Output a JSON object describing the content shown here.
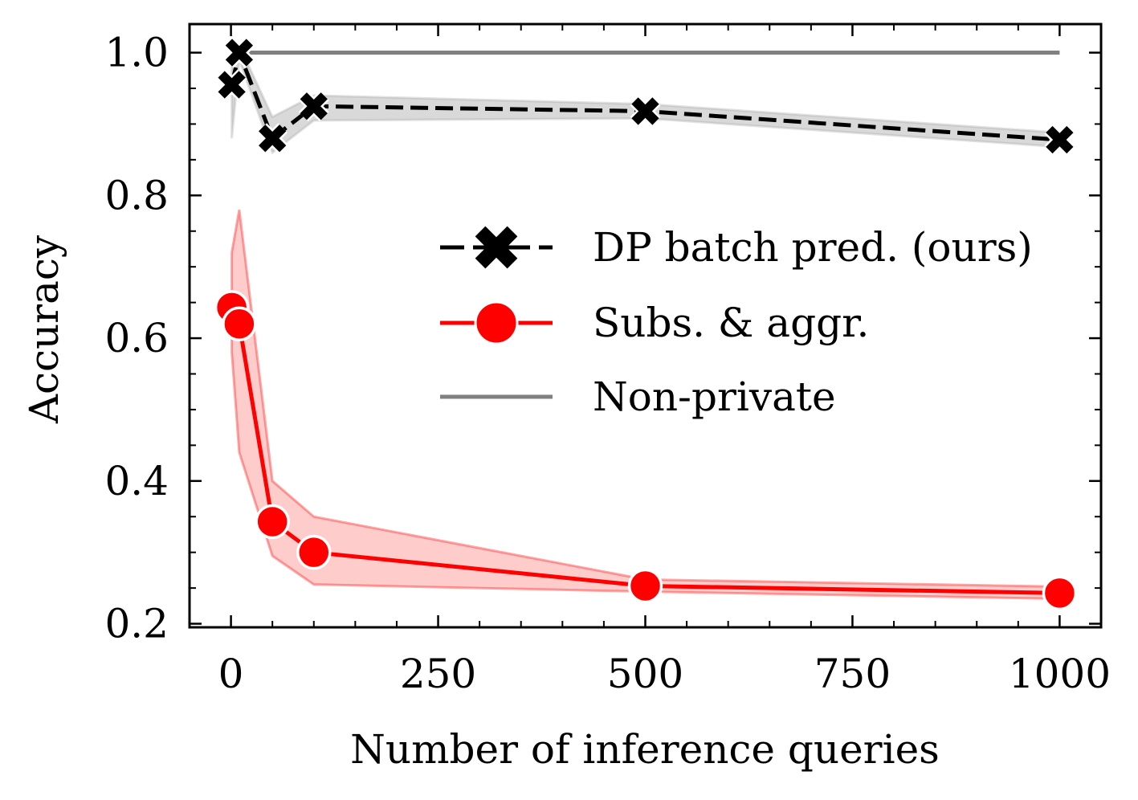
{
  "chart_data": {
    "type": "line",
    "xlabel": "Number of inference queries",
    "ylabel": "Accuracy",
    "xlim": [
      -50,
      1050
    ],
    "ylim": [
      0.195,
      1.04
    ],
    "xticks": [
      0,
      250,
      500,
      750,
      1000
    ],
    "xtick_labels": [
      "0",
      "250",
      "500",
      "750",
      "1000"
    ],
    "yticks": [
      0.2,
      0.4,
      0.6,
      0.8,
      1.0
    ],
    "ytick_labels": [
      "0.2",
      "0.4",
      "0.6",
      "0.8",
      "1.0"
    ],
    "grid": false,
    "legend_position": "center-right",
    "series": [
      {
        "name": "DP batch pred. (ours)",
        "color": "#000000",
        "line_style": "dashed",
        "marker": "x",
        "band_color": "#aaaaaa",
        "x": [
          1,
          10,
          50,
          100,
          500,
          1000
        ],
        "y": [
          0.955,
          1.0,
          0.88,
          0.925,
          0.918,
          0.878
        ],
        "lower": [
          0.88,
          0.99,
          0.86,
          0.905,
          0.908,
          0.868
        ],
        "upper": [
          0.98,
          1.01,
          0.91,
          0.94,
          0.928,
          0.888
        ]
      },
      {
        "name": "Subs. & aggr.",
        "color": "#ff0000",
        "line_style": "solid",
        "marker": "o",
        "band_color": "#ff0000",
        "x": [
          1,
          10,
          50,
          100,
          500,
          1000
        ],
        "y": [
          0.643,
          0.62,
          0.343,
          0.3,
          0.253,
          0.243
        ],
        "lower": [
          0.58,
          0.44,
          0.295,
          0.255,
          0.245,
          0.235
        ],
        "upper": [
          0.72,
          0.78,
          0.4,
          0.35,
          0.262,
          0.252
        ]
      },
      {
        "name": "Non-private",
        "color": "#808080",
        "line_style": "solid",
        "marker": "none",
        "x": [
          1,
          1000
        ],
        "y": [
          1.0,
          1.0
        ]
      }
    ]
  }
}
